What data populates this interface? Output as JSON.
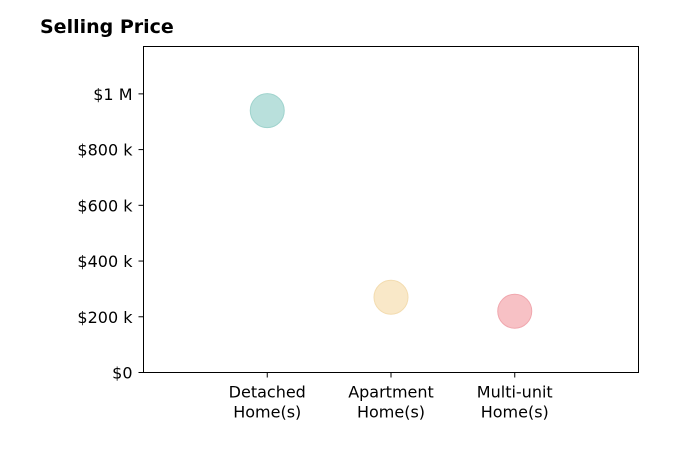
{
  "chart_data": {
    "type": "scatter",
    "title": "Selling Price",
    "xlabel": "",
    "ylabel": "",
    "categories": [
      [
        "Detached",
        "Home(s)"
      ],
      [
        "Apartment",
        "Home(s)"
      ],
      [
        "Multi-unit",
        "Home(s)"
      ]
    ],
    "values": [
      940000,
      270000,
      220000
    ],
    "colors": [
      "#b9e0dc",
      "#f9e8c8",
      "#f7c1c5"
    ],
    "edge_colors": [
      "#9fd3cd",
      "#f3dcb0",
      "#f0a7ae"
    ],
    "ylim": [
      0,
      1170000
    ],
    "xlim": [
      -1,
      3
    ],
    "yticks": [
      0,
      200000,
      400000,
      600000,
      800000,
      1000000
    ],
    "ytick_labels": [
      "$0",
      "$200 k",
      "$400 k",
      "$600 k",
      "$800 k",
      "$1 M"
    ],
    "grid": false,
    "legend": "none"
  }
}
